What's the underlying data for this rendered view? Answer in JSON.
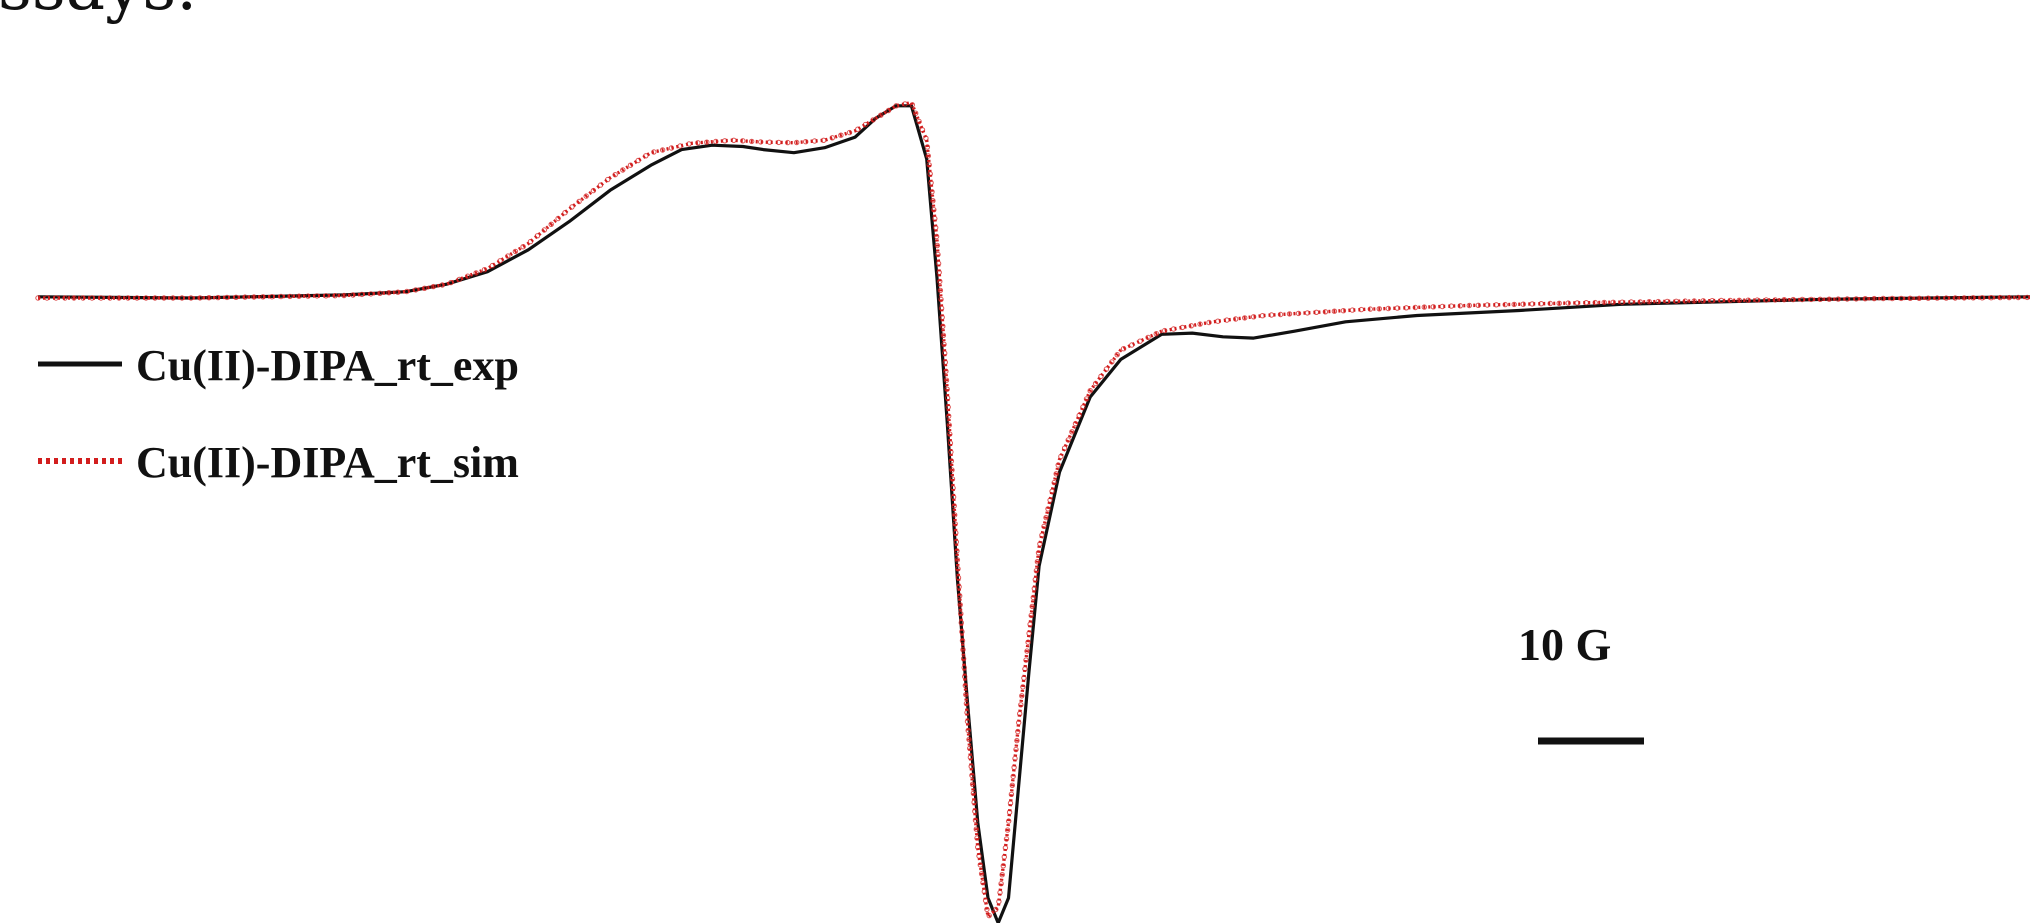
{
  "header": {
    "text": "ssays."
  },
  "colors": {
    "experimental": "#111111",
    "simulated": "#d21e1e"
  },
  "legend": [
    {
      "label": "Cu(II)-DIPA_rt_exp",
      "style": "solid",
      "color": "#111111"
    },
    {
      "label": "Cu(II)-DIPA_rt_sim",
      "style": "dotted",
      "color": "#d21e1e"
    }
  ],
  "scale_bar": {
    "label": "10 G",
    "value": 10,
    "unit": "G"
  },
  "chart_data": {
    "type": "line",
    "title": "",
    "xlabel": "",
    "ylabel": "",
    "xlim": [
      0,
      195
    ],
    "ylim": [
      -1,
      0.41
    ],
    "grid": false,
    "legend_position": "left",
    "axes_visible": false,
    "series": [
      {
        "name": "Cu(II)-DIPA_rt_exp",
        "style": "solid",
        "color": "#111111",
        "points": [
          [
            0,
            0
          ],
          [
            15,
            -0.002
          ],
          [
            30,
            0.003
          ],
          [
            36,
            0.008
          ],
          [
            40,
            0.02
          ],
          [
            44,
            0.04
          ],
          [
            48,
            0.075
          ],
          [
            52,
            0.12
          ],
          [
            56,
            0.17
          ],
          [
            60,
            0.21
          ],
          [
            63,
            0.235
          ],
          [
            66,
            0.242
          ],
          [
            69,
            0.24
          ],
          [
            71,
            0.235
          ],
          [
            74,
            0.23
          ],
          [
            77,
            0.238
          ],
          [
            80,
            0.255
          ],
          [
            82,
            0.285
          ],
          [
            84,
            0.305
          ],
          [
            85.5,
            0.305
          ],
          [
            87,
            0.22
          ],
          [
            88,
            0.03
          ],
          [
            89,
            -0.2
          ],
          [
            90,
            -0.45
          ],
          [
            91,
            -0.65
          ],
          [
            92,
            -0.84
          ],
          [
            93,
            -0.96
          ],
          [
            94,
            -1.0
          ],
          [
            95,
            -0.96
          ],
          [
            96,
            -0.78
          ],
          [
            97,
            -0.6
          ],
          [
            98,
            -0.43
          ],
          [
            100,
            -0.28
          ],
          [
            103,
            -0.16
          ],
          [
            106,
            -0.1
          ],
          [
            110,
            -0.06
          ],
          [
            113,
            -0.058
          ],
          [
            116,
            -0.064
          ],
          [
            119,
            -0.066
          ],
          [
            123,
            -0.055
          ],
          [
            128,
            -0.04
          ],
          [
            135,
            -0.03
          ],
          [
            145,
            -0.022
          ],
          [
            155,
            -0.012
          ],
          [
            165,
            -0.008
          ],
          [
            175,
            -0.004
          ],
          [
            185,
            -0.002
          ],
          [
            195,
            0
          ]
        ]
      },
      {
        "name": "Cu(II)-DIPA_rt_sim",
        "style": "dotted",
        "color": "#d21e1e",
        "points": [
          [
            0,
            -0.002
          ],
          [
            15,
            -0.002
          ],
          [
            30,
            0.002
          ],
          [
            36,
            0.008
          ],
          [
            40,
            0.02
          ],
          [
            44,
            0.045
          ],
          [
            48,
            0.085
          ],
          [
            52,
            0.14
          ],
          [
            56,
            0.19
          ],
          [
            60,
            0.23
          ],
          [
            64,
            0.245
          ],
          [
            68,
            0.25
          ],
          [
            71,
            0.247
          ],
          [
            74,
            0.246
          ],
          [
            77,
            0.25
          ],
          [
            80,
            0.265
          ],
          [
            82,
            0.285
          ],
          [
            84,
            0.305
          ],
          [
            85.5,
            0.31
          ],
          [
            87,
            0.25
          ],
          [
            88,
            0.09
          ],
          [
            89,
            -0.15
          ],
          [
            90,
            -0.42
          ],
          [
            91,
            -0.68
          ],
          [
            92,
            -0.88
          ],
          [
            93,
            -0.99
          ],
          [
            94,
            -0.975
          ],
          [
            95,
            -0.84
          ],
          [
            96,
            -0.68
          ],
          [
            97,
            -0.54
          ],
          [
            98,
            -0.4
          ],
          [
            100,
            -0.26
          ],
          [
            103,
            -0.15
          ],
          [
            106,
            -0.085
          ],
          [
            110,
            -0.055
          ],
          [
            115,
            -0.04
          ],
          [
            120,
            -0.03
          ],
          [
            130,
            -0.02
          ],
          [
            140,
            -0.014
          ],
          [
            150,
            -0.01
          ],
          [
            165,
            -0.006
          ],
          [
            180,
            -0.003
          ],
          [
            195,
            -0.001
          ]
        ]
      }
    ]
  }
}
